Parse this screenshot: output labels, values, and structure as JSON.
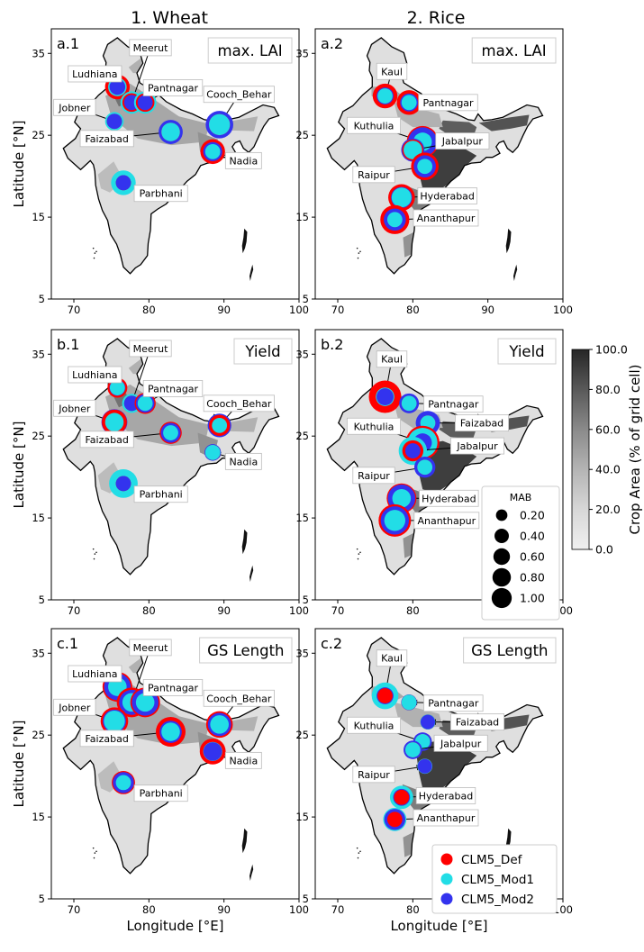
{
  "figure": {
    "column_titles": [
      "1. Wheat",
      "2. Rice"
    ],
    "xlabel": "Longitude [°E]",
    "ylabel": "Latitude [°N]",
    "x_ticks": [
      "70",
      "80",
      "90",
      "100"
    ],
    "y_ticks": [
      "35",
      "25",
      "15",
      "5"
    ],
    "colorbar": {
      "label": "Crop Area (% of grid cell)",
      "ticks": [
        "100.0",
        "80.0",
        "60.0",
        "40.0",
        "20.0",
        "0.0"
      ]
    },
    "mab_legend": {
      "title": "MAB",
      "entries": [
        "0.20",
        "0.40",
        "0.60",
        "0.80",
        "1.00"
      ]
    },
    "model_legend": {
      "entries": [
        {
          "label": "CLM5_Def",
          "color": "#ff0000"
        },
        {
          "label": "CLM5_Mod1",
          "color": "#22dde6"
        },
        {
          "label": "CLM5_Mod2",
          "color": "#3333ee"
        }
      ]
    }
  },
  "chart_data": [
    {
      "type": "scatter",
      "panel": "a.1",
      "crop": "Wheat",
      "metric": "max. LAI",
      "xlim": [
        67,
        100
      ],
      "ylim": [
        5,
        38
      ],
      "sites": [
        {
          "name": "Ludhiana",
          "lon": 75.8,
          "lat": 30.9,
          "mab": {
            "CLM5_Def": 0.48,
            "CLM5_Mod1": 0.2,
            "CLM5_Mod2": 0.12
          }
        },
        {
          "name": "Meerut",
          "lon": 77.7,
          "lat": 29.0,
          "mab": {
            "CLM5_Def": 0.2,
            "CLM5_Mod1": 0.36,
            "CLM5_Mod2": 0.1
          }
        },
        {
          "name": "Pantnagar",
          "lon": 79.5,
          "lat": 29.0,
          "mab": {
            "CLM5_Def": 0.2,
            "CLM5_Mod1": 0.36,
            "CLM5_Mod2": 0.1
          }
        },
        {
          "name": "Jobner",
          "lon": 75.4,
          "lat": 26.7,
          "mab": {
            "CLM5_Def": 0.1,
            "CLM5_Mod1": 0.2,
            "CLM5_Mod2": 0.1
          }
        },
        {
          "name": "Cooch_Behar",
          "lon": 89.4,
          "lat": 26.3,
          "mab": {
            "CLM5_Def": 0.3,
            "CLM5_Mod1": 0.3,
            "CLM5_Mod2": 0.65
          }
        },
        {
          "name": "Faizabad",
          "lon": 82.9,
          "lat": 25.4,
          "mab": {
            "CLM5_Def": 0.2,
            "CLM5_Mod1": 0.2,
            "CLM5_Mod2": 0.45
          }
        },
        {
          "name": "Nadia",
          "lon": 88.5,
          "lat": 23.0,
          "mab": {
            "CLM5_Def": 0.48,
            "CLM5_Mod1": 0.1,
            "CLM5_Mod2": 0.22
          }
        },
        {
          "name": "Parbhani",
          "lon": 76.6,
          "lat": 19.2,
          "mab": {
            "CLM5_Def": 0.1,
            "CLM5_Mod1": 0.48,
            "CLM5_Mod2": 0.1
          }
        }
      ]
    },
    {
      "type": "scatter",
      "panel": "a.2",
      "crop": "Rice",
      "metric": "max. LAI",
      "xlim": [
        67,
        100
      ],
      "ylim": [
        5,
        38
      ],
      "sites": [
        {
          "name": "Kaul",
          "lon": 76.3,
          "lat": 29.8,
          "mab": {
            "CLM5_Def": 0.48,
            "CLM5_Mod1": 0.1,
            "CLM5_Mod2": 0.15
          }
        },
        {
          "name": "Pantnagar",
          "lon": 79.5,
          "lat": 29.0,
          "mab": {
            "CLM5_Def": 0.48,
            "CLM5_Mod1": 0.1,
            "CLM5_Mod2": 0.18
          }
        },
        {
          "name": "Kuthulia",
          "lon": 81.3,
          "lat": 24.2,
          "mab": {
            "CLM5_Def": 0.95,
            "CLM5_Mod1": 0.2,
            "CLM5_Mod2": 0.75
          }
        },
        {
          "name": "Jabalpur",
          "lon": 80.0,
          "lat": 23.2,
          "mab": {
            "CLM5_Def": 0.3,
            "CLM5_Mod1": 0.2,
            "CLM5_Mod2": 0.4
          }
        },
        {
          "name": "Raipur",
          "lon": 81.6,
          "lat": 21.2,
          "mab": {
            "CLM5_Def": 0.65,
            "CLM5_Mod1": 0.1,
            "CLM5_Mod2": 0.35
          }
        },
        {
          "name": "Hyderabad",
          "lon": 78.5,
          "lat": 17.4,
          "mab": {
            "CLM5_Def": 0.6,
            "CLM5_Mod1": 0.25,
            "CLM5_Mod2": 0.3
          }
        },
        {
          "name": "Ananthapur",
          "lon": 77.6,
          "lat": 14.7,
          "mab": {
            "CLM5_Def": 0.75,
            "CLM5_Mod1": 0.1,
            "CLM5_Mod2": 0.35
          }
        }
      ]
    },
    {
      "type": "scatter",
      "panel": "b.1",
      "crop": "Wheat",
      "metric": "Yield",
      "xlim": [
        67,
        100
      ],
      "ylim": [
        5,
        38
      ],
      "sites": [
        {
          "name": "Ludhiana",
          "lon": 75.8,
          "lat": 30.9,
          "mab": {
            "CLM5_Def": 0.25,
            "CLM5_Mod1": 0.1,
            "CLM5_Mod2": 0.12
          }
        },
        {
          "name": "Meerut",
          "lon": 77.7,
          "lat": 29.0,
          "mab": {
            "CLM5_Def": 0.1,
            "CLM5_Mod1": 0.22,
            "CLM5_Mod2": 0.1
          }
        },
        {
          "name": "Pantnagar",
          "lon": 79.5,
          "lat": 29.0,
          "mab": {
            "CLM5_Def": 0.3,
            "CLM5_Mod1": 0.1,
            "CLM5_Mod2": 0.2
          }
        },
        {
          "name": "Jobner",
          "lon": 75.4,
          "lat": 26.7,
          "mab": {
            "CLM5_Def": 0.5,
            "CLM5_Mod1": 0.2,
            "CLM5_Mod2": 0.55
          }
        },
        {
          "name": "Cooch_Behar",
          "lon": 89.4,
          "lat": 26.3,
          "mab": {
            "CLM5_Def": 0.3,
            "CLM5_Mod1": 0.1,
            "CLM5_Mod2": 0.42
          }
        },
        {
          "name": "Faizabad",
          "lon": 82.9,
          "lat": 25.4,
          "mab": {
            "CLM5_Def": 0.35,
            "CLM5_Mod1": 0.1,
            "CLM5_Mod2": 0.25
          }
        },
        {
          "name": "Nadia",
          "lon": 88.5,
          "lat": 23.0,
          "mab": {
            "CLM5_Def": 0.1,
            "CLM5_Mod1": 0.1,
            "CLM5_Mod2": 0.14
          }
        },
        {
          "name": "Parbhani",
          "lon": 76.6,
          "lat": 19.2,
          "mab": {
            "CLM5_Def": 0.1,
            "CLM5_Mod1": 0.72,
            "CLM5_Mod2": 0.1
          }
        }
      ]
    },
    {
      "type": "scatter",
      "panel": "b.2",
      "crop": "Rice",
      "metric": "Yield",
      "xlim": [
        67,
        100
      ],
      "ylim": [
        5,
        38
      ],
      "sites": [
        {
          "name": "Kaul",
          "lon": 76.3,
          "lat": 29.8,
          "mab": {
            "CLM5_Def": 1.0,
            "CLM5_Mod1": 0.2,
            "CLM5_Mod2": 0.15
          }
        },
        {
          "name": "Pantnagar",
          "lon": 79.5,
          "lat": 29.0,
          "mab": {
            "CLM5_Def": 0.1,
            "CLM5_Mod1": 0.1,
            "CLM5_Mod2": 0.25
          }
        },
        {
          "name": "Faizabad",
          "lon": 82.0,
          "lat": 26.6,
          "mab": {
            "CLM5_Def": 0.1,
            "CLM5_Mod1": 0.1,
            "CLM5_Mod2": 0.45
          }
        },
        {
          "name": "Kuthulia",
          "lon": 81.3,
          "lat": 24.2,
          "mab": {
            "CLM5_Def": 1.1,
            "CLM5_Mod1": 0.8,
            "CLM5_Mod2": 0.2
          }
        },
        {
          "name": "Jabalpur",
          "lon": 80.0,
          "lat": 23.2,
          "mab": {
            "CLM5_Def": 0.3,
            "CLM5_Mod1": 0.7,
            "CLM5_Mod2": 0.1
          }
        },
        {
          "name": "Raipur",
          "lon": 81.6,
          "lat": 21.2,
          "mab": {
            "CLM5_Def": 0.1,
            "CLM5_Mod1": 0.1,
            "CLM5_Mod2": 0.3
          }
        },
        {
          "name": "Hyderabad",
          "lon": 78.5,
          "lat": 17.4,
          "mab": {
            "CLM5_Def": 0.8,
            "CLM5_Mod1": 0.2,
            "CLM5_Mod2": 0.65
          }
        },
        {
          "name": "Ananthapur",
          "lon": 77.6,
          "lat": 14.7,
          "mab": {
            "CLM5_Def": 1.0,
            "CLM5_Mod1": 0.3,
            "CLM5_Mod2": 0.7
          }
        }
      ]
    },
    {
      "type": "scatter",
      "panel": "c.1",
      "crop": "Wheat",
      "metric": "GS Length",
      "xlim": [
        67,
        100
      ],
      "ylim": [
        5,
        38
      ],
      "sites": [
        {
          "name": "Ludhiana",
          "lon": 75.8,
          "lat": 30.9,
          "mab": {
            "CLM5_Def": 0.8,
            "CLM5_Mod1": 0.2,
            "CLM5_Mod2": 0.6
          }
        },
        {
          "name": "Meerut",
          "lon": 77.7,
          "lat": 29.0,
          "mab": {
            "CLM5_Def": 0.8,
            "CLM5_Mod1": 0.2,
            "CLM5_Mod2": 0.5
          }
        },
        {
          "name": "Pantnagar",
          "lon": 79.5,
          "lat": 29.0,
          "mab": {
            "CLM5_Def": 0.8,
            "CLM5_Mod1": 0.2,
            "CLM5_Mod2": 0.6
          }
        },
        {
          "name": "Jobner",
          "lon": 75.4,
          "lat": 26.7,
          "mab": {
            "CLM5_Def": 0.65,
            "CLM5_Mod1": 0.3,
            "CLM5_Mod2": 0.4
          }
        },
        {
          "name": "Cooch_Behar",
          "lon": 89.4,
          "lat": 26.3,
          "mab": {
            "CLM5_Def": 0.6,
            "CLM5_Mod1": 0.2,
            "CLM5_Mod2": 0.4
          }
        },
        {
          "name": "Faizabad",
          "lon": 82.9,
          "lat": 25.4,
          "mab": {
            "CLM5_Def": 0.8,
            "CLM5_Mod1": 0.2,
            "CLM5_Mod2": 0.35
          }
        },
        {
          "name": "Nadia",
          "lon": 88.5,
          "lat": 23.0,
          "mab": {
            "CLM5_Def": 0.55,
            "CLM5_Mod1": 0.22,
            "CLM5_Mod2": 0.2
          }
        },
        {
          "name": "Parbhani",
          "lon": 76.6,
          "lat": 19.2,
          "mab": {
            "CLM5_Def": 0.4,
            "CLM5_Mod1": 0.1,
            "CLM5_Mod2": 0.3
          }
        }
      ]
    },
    {
      "type": "scatter",
      "panel": "c.2",
      "crop": "Rice",
      "metric": "GS Length",
      "xlim": [
        67,
        100
      ],
      "ylim": [
        5,
        38
      ],
      "sites": [
        {
          "name": "Kaul",
          "lon": 76.3,
          "lat": 29.8,
          "mab": {
            "CLM5_Def": 0.1,
            "CLM5_Mod1": 0.6,
            "CLM5_Mod2": 0.15
          }
        },
        {
          "name": "Pantnagar",
          "lon": 79.5,
          "lat": 29.0,
          "mab": {
            "CLM5_Def": 0.1,
            "CLM5_Mod1": 0.1,
            "CLM5_Mod2": 0.12
          }
        },
        {
          "name": "Faizabad",
          "lon": 82.0,
          "lat": 26.6,
          "mab": {
            "CLM5_Def": 0.1,
            "CLM5_Mod1": 0.1,
            "CLM5_Mod2": 0.08
          }
        },
        {
          "name": "Kuthulia",
          "lon": 81.3,
          "lat": 24.2,
          "mab": {
            "CLM5_Def": 0.1,
            "CLM5_Mod1": 0.1,
            "CLM5_Mod2": 0.2
          }
        },
        {
          "name": "Jabalpur",
          "lon": 80.0,
          "lat": 23.2,
          "mab": {
            "CLM5_Def": 0.1,
            "CLM5_Mod1": 0.1,
            "CLM5_Mod2": 0.2
          }
        },
        {
          "name": "Raipur",
          "lon": 81.6,
          "lat": 21.2,
          "mab": {
            "CLM5_Def": 0.1,
            "CLM5_Mod1": 0.1,
            "CLM5_Mod2": 0.08
          }
        },
        {
          "name": "Hyderabad",
          "lon": 78.5,
          "lat": 17.4,
          "mab": {
            "CLM5_Def": 0.1,
            "CLM5_Mod1": 0.4,
            "CLM5_Mod2": 0.15
          }
        },
        {
          "name": "Ananthapur",
          "lon": 77.6,
          "lat": 14.7,
          "mab": {
            "CLM5_Def": 0.1,
            "CLM5_Mod1": 0.4,
            "CLM5_Mod2": 0.3
          }
        }
      ]
    }
  ]
}
